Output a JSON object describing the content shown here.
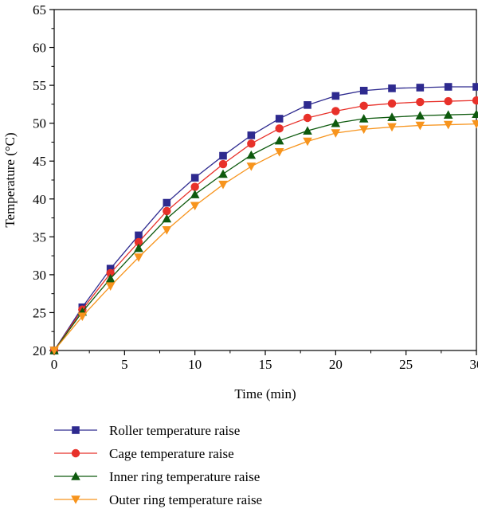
{
  "chart_data": {
    "type": "line",
    "title": "",
    "xlabel": "Time (min)",
    "ylabel": "Temperature (°C)",
    "xlim": [
      0,
      30
    ],
    "ylim": [
      20,
      65
    ],
    "xticks": [
      0,
      5,
      10,
      15,
      20,
      25,
      30
    ],
    "yticks": [
      20,
      25,
      30,
      35,
      40,
      45,
      50,
      55,
      60,
      65
    ],
    "x": [
      0,
      2,
      4,
      6,
      8,
      10,
      12,
      14,
      16,
      18,
      20,
      22,
      24,
      26,
      28,
      30
    ],
    "grid": false,
    "legend_position": "bottom",
    "series": [
      {
        "name": "Roller temperature raise",
        "marker": "square",
        "color": "#2E2A8F",
        "values": [
          20.0,
          25.7,
          30.8,
          35.2,
          39.5,
          42.8,
          45.7,
          48.4,
          50.6,
          52.4,
          53.6,
          54.3,
          54.6,
          54.7,
          54.8,
          54.8
        ]
      },
      {
        "name": "Cage temperature raise",
        "marker": "circle",
        "color": "#E8312A",
        "values": [
          20.0,
          25.4,
          30.2,
          34.3,
          38.4,
          41.6,
          44.6,
          47.3,
          49.3,
          50.7,
          51.6,
          52.3,
          52.6,
          52.8,
          52.9,
          53.0
        ]
      },
      {
        "name": "Inner ring temperature raise",
        "marker": "triangle-up",
        "color": "#0E5A0E",
        "values": [
          20.0,
          25.1,
          29.5,
          33.5,
          37.4,
          40.6,
          43.3,
          45.8,
          47.7,
          49.0,
          50.0,
          50.6,
          50.8,
          51.0,
          51.1,
          51.2
        ]
      },
      {
        "name": "Outer ring temperature raise",
        "marker": "triangle-down",
        "color": "#F7941D",
        "values": [
          20.0,
          24.5,
          28.5,
          32.3,
          35.9,
          39.1,
          41.9,
          44.3,
          46.2,
          47.6,
          48.7,
          49.2,
          49.5,
          49.7,
          49.8,
          49.9
        ]
      }
    ]
  }
}
